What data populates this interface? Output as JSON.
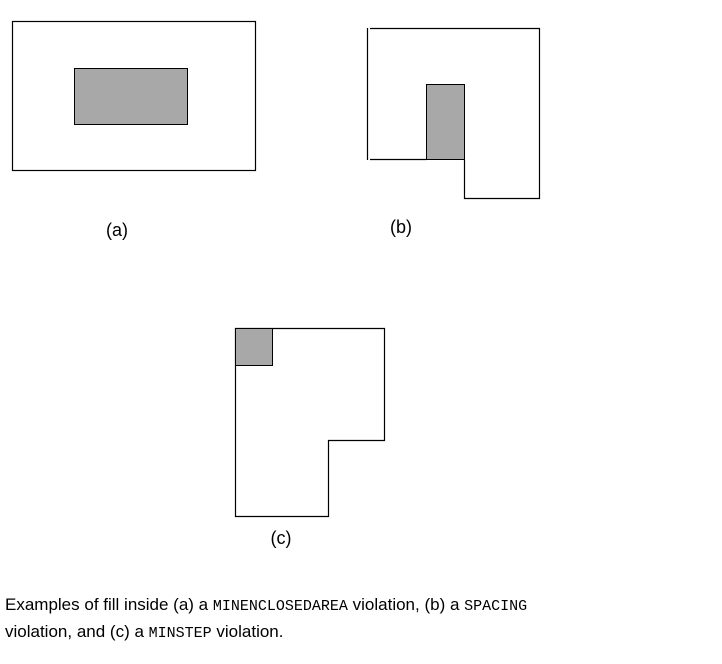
{
  "colors": {
    "outline": "#000000",
    "fill": "#a8a8a8",
    "background": "#ffffff"
  },
  "panels": {
    "a": {
      "label": "(a)"
    },
    "b": {
      "label": "(b)"
    },
    "c": {
      "label": "(c)"
    }
  },
  "caption": {
    "part1": "Examples of fill inside (a) a ",
    "code1": "MINENCLOSEDAREA",
    "part2": " violation, (b) a ",
    "code2": "SPACING",
    "part3": " violation, and (c) a ",
    "code3": "MINSTEP",
    "part4": " violation."
  }
}
